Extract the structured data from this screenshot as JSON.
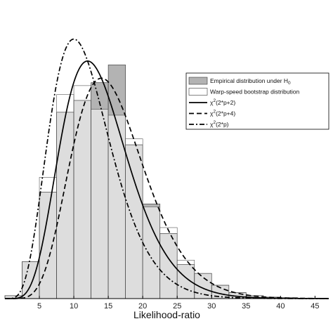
{
  "chart_data": {
    "type": "bar",
    "title": "",
    "xlabel": "Likelihood-ratio",
    "ylabel": "",
    "xlim": [
      0,
      47
    ],
    "ylim": [
      0,
      0.1
    ],
    "xticks": [
      5,
      10,
      15,
      20,
      25,
      30,
      35,
      40,
      45
    ],
    "bin_edges": [
      0,
      2.5,
      5,
      7.5,
      10,
      12.5,
      15,
      17.5,
      20,
      22.5,
      25,
      27.5,
      30,
      32.5,
      35,
      37.5,
      40,
      42.5,
      45,
      47.5
    ],
    "series": [
      {
        "name": "Empirical distribution under H_0",
        "name_main": "Empirical distribution under H",
        "name_sub": "0",
        "kind": "histogram",
        "color": "#b3b3b3",
        "values": [
          0.001,
          0.0125,
          0.036,
          0.063,
          0.067,
          0.073,
          0.079,
          0.052,
          0.032,
          0.022,
          0.0115,
          0.0085,
          0.0045,
          0.002,
          0.001,
          0.0005,
          0.0003,
          0.0001,
          0.0
        ]
      },
      {
        "name": "Warp-speed bootstrap distribution",
        "kind": "histogram",
        "color": "#ffffff",
        "values": [
          0.001,
          0.0125,
          0.041,
          0.069,
          0.072,
          0.064,
          0.062,
          0.054,
          0.031,
          0.024,
          0.013,
          0.0085,
          0.0045,
          0.002,
          0.001,
          0.0005,
          0.0003,
          0.0001,
          0.0
        ]
      },
      {
        "name": "χ²(2*p+2)",
        "name_main": "χ",
        "name_sup": "2",
        "name_rest": "(2*p+2)",
        "kind": "chi2",
        "df": 14,
        "dash": ""
      },
      {
        "name": "χ²(2*p+4)",
        "name_main": "χ",
        "name_sup": "2",
        "name_rest": "(2*p+4)",
        "kind": "chi2",
        "df": 16,
        "dash": "7,4"
      },
      {
        "name": "χ²(2*p)",
        "name_main": "χ",
        "name_sup": "2",
        "name_rest": "(2*p)",
        "kind": "chi2",
        "df": 12,
        "dash": "7,3,2,3"
      }
    ],
    "legend_position": "upper-right",
    "grid": false
  }
}
